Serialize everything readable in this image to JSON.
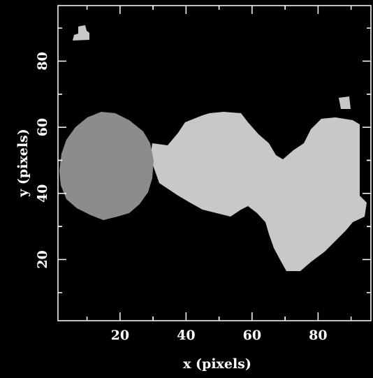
{
  "chart_data": {
    "type": "segmentation",
    "xlabel": "x (pixels)",
    "ylabel": "y (pixels)",
    "xlim": [
      1.2,
      96
    ],
    "ylim": [
      1.5,
      96.8
    ],
    "xticks": [
      20,
      40,
      60,
      80
    ],
    "yticks": [
      20,
      40,
      60,
      80
    ],
    "colors": [
      "#8c8c8c",
      "#c8c8c8"
    ]
  }
}
